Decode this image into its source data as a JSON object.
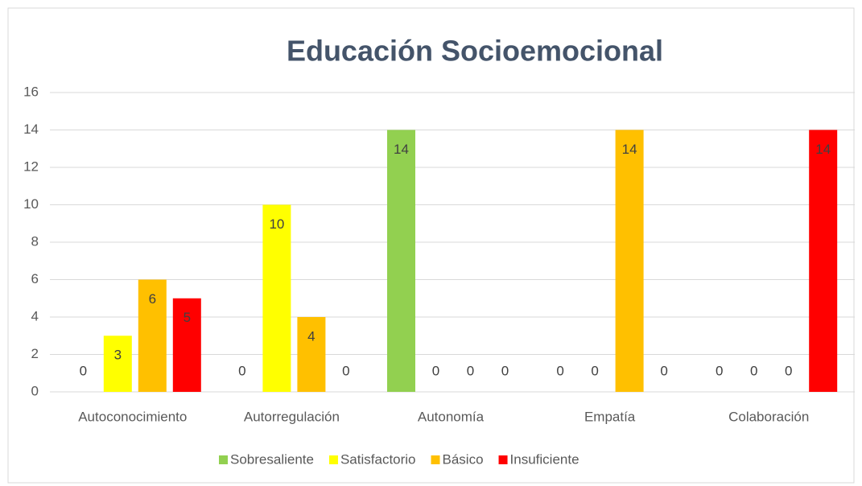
{
  "chart_data": {
    "type": "bar",
    "title": "Educación Socioemocional",
    "categories": [
      "Autoconocimiento",
      "Autorregulación",
      "Autonomía",
      "Empatía",
      "Colaboración"
    ],
    "series": [
      {
        "name": "Sobresaliente",
        "color": "#92d050",
        "values": [
          0,
          0,
          14,
          0,
          0
        ]
      },
      {
        "name": "Satisfactorio",
        "color": "#ffff00",
        "values": [
          3,
          10,
          0,
          0,
          0
        ]
      },
      {
        "name": "Básico",
        "color": "#ffc000",
        "values": [
          6,
          4,
          0,
          14,
          0
        ]
      },
      {
        "name": "Insuficiente",
        "color": "#ff0000",
        "values": [
          5,
          0,
          0,
          0,
          14
        ]
      }
    ],
    "ylim": [
      0,
      16
    ],
    "yticks": [
      0,
      2,
      4,
      6,
      8,
      10,
      12,
      14,
      16
    ],
    "grid": true,
    "legend": "bottom"
  }
}
